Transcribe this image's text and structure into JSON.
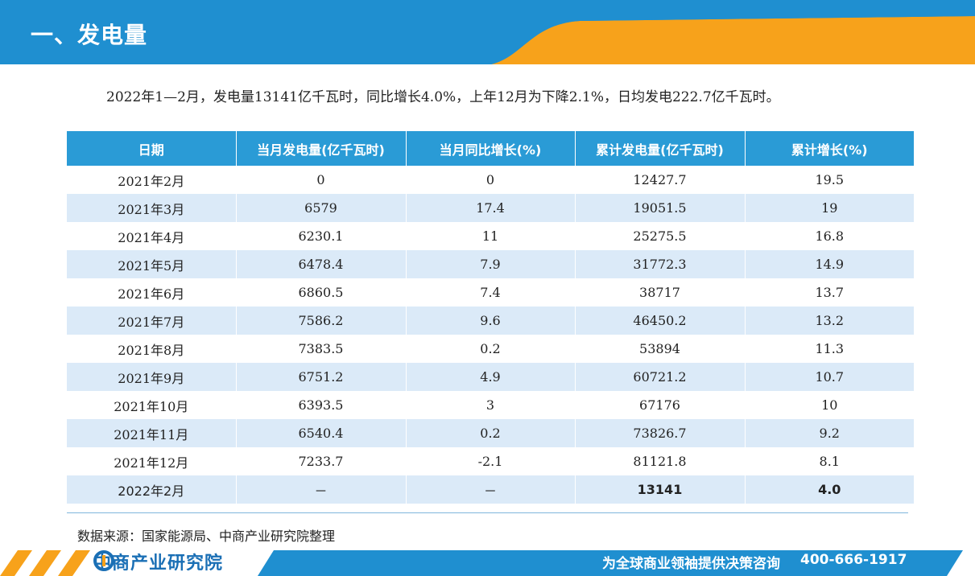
{
  "header": {
    "title": "一、发电量"
  },
  "summary": "2022年1—2月，发电量13141亿千瓦时，同比增长4.0%，上年12月为下降2.1%，日均发电222.7亿千瓦时。",
  "table": {
    "columns": [
      "日期",
      "当月发电量(亿千瓦时)",
      "当月同比增长(%)",
      "累计发电量(亿千瓦时)",
      "累计增长(%)"
    ],
    "rows": [
      [
        "2021年2月",
        "0",
        "0",
        "12427.7",
        "19.5"
      ],
      [
        "2021年3月",
        "6579",
        "17.4",
        "19051.5",
        "19"
      ],
      [
        "2021年4月",
        "6230.1",
        "11",
        "25275.5",
        "16.8"
      ],
      [
        "2021年5月",
        "6478.4",
        "7.9",
        "31772.3",
        "14.9"
      ],
      [
        "2021年6月",
        "6860.5",
        "7.4",
        "38717",
        "13.7"
      ],
      [
        "2021年7月",
        "7586.2",
        "9.6",
        "46450.2",
        "13.2"
      ],
      [
        "2021年8月",
        "7383.5",
        "0.2",
        "53894",
        "11.3"
      ],
      [
        "2021年9月",
        "6751.2",
        "4.9",
        "60721.2",
        "10.7"
      ],
      [
        "2021年10月",
        "6393.5",
        "3",
        "67176",
        "10"
      ],
      [
        "2021年11月",
        "6540.4",
        "0.2",
        "73826.7",
        "9.2"
      ],
      [
        "2021年12月",
        "7233.7",
        "-2.1",
        "81121.8",
        "8.1"
      ],
      [
        "2022年2月",
        "－",
        "－",
        "13141",
        "4.0"
      ]
    ]
  },
  "source": "数据来源：国家能源局、中商产业研究院整理",
  "footer": {
    "logo_text": "中商产业研究院",
    "slogan": "为全球商业领袖提供决策咨询",
    "phone": "400-666-1917"
  },
  "colors": {
    "header_blue": "#1f8fd0",
    "accent_orange": "#f7a21b",
    "table_header": "#2a9bd6",
    "row_stripe": "#dbeaf8"
  }
}
